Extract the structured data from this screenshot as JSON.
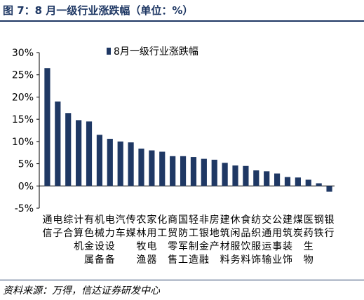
{
  "figure": {
    "title": "图 7：8 月一级行业涨跌幅（单位：%）",
    "source": "资料来源：万得，信达证券研发中心"
  },
  "colors": {
    "bar": "#1f3864",
    "accent": "#1f3864"
  },
  "chart_data": {
    "type": "bar",
    "legend": {
      "label": "8月一级行业涨跌幅",
      "placement": "top"
    },
    "categories": [
      "通信",
      "电子",
      "综合",
      "计算机",
      "有色金属",
      "机械设备",
      "电力设备",
      "汽车",
      "传媒",
      "农林牧渔",
      "家用电器",
      "化工",
      "商贸零售",
      "国防军工",
      "轻工制造",
      "非银金融",
      "房地产",
      "建筑材料",
      "休闲服务",
      "食品饮料",
      "纺织服饰",
      "交通运输",
      "公用事业",
      "建筑装饰",
      "煤炭",
      "医药生物",
      "钢铁",
      "银行"
    ],
    "values": [
      26.5,
      19.0,
      16.4,
      14.8,
      14.5,
      11.5,
      10.6,
      10.0,
      9.8,
      8.4,
      8.0,
      7.7,
      6.7,
      6.7,
      6.5,
      6.1,
      5.9,
      5.2,
      4.6,
      4.5,
      3.5,
      3.3,
      2.8,
      2.0,
      1.9,
      1.4,
      0.6,
      -1.3
    ],
    "ylim": [
      -5,
      30
    ],
    "yticks": [
      "-5%",
      "0%",
      "5%",
      "10%",
      "15%",
      "20%",
      "25%",
      "30%"
    ],
    "ytick_values": [
      -5,
      0,
      5,
      10,
      15,
      20,
      25,
      30
    ],
    "grid": false
  }
}
